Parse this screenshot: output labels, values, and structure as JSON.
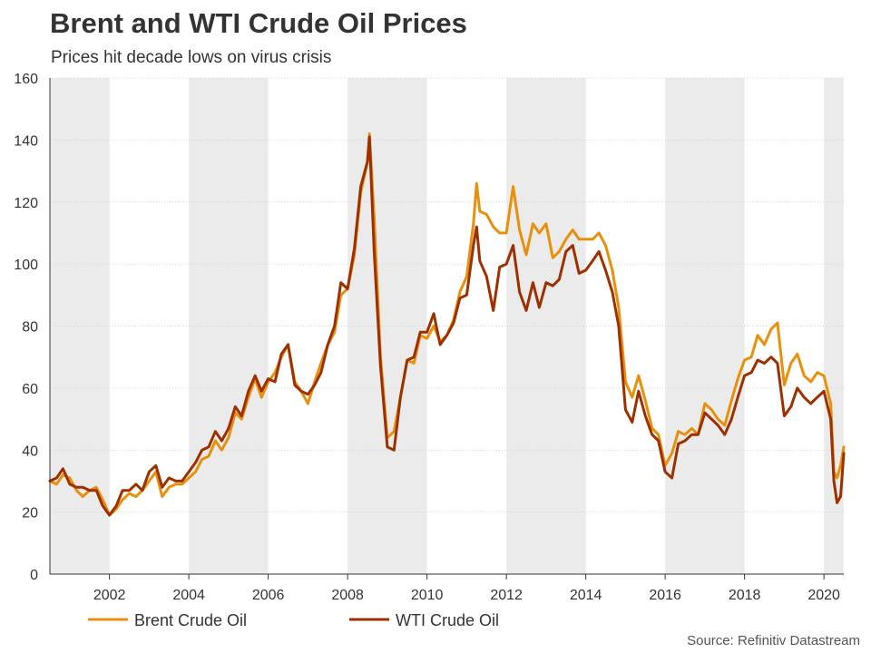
{
  "chart_data": {
    "type": "line",
    "title": "Brent and WTI Crude Oil Prices",
    "subtitle": "Prices hit decade lows on virus crisis",
    "source": "Source: Refinitiv Datastream",
    "ylim": [
      0,
      160
    ],
    "yticks": [
      0,
      20,
      40,
      60,
      80,
      100,
      120,
      140,
      160
    ],
    "xlim": [
      2000.5,
      2020.5
    ],
    "xticks": [
      2002,
      2004,
      2006,
      2008,
      2010,
      2012,
      2014,
      2016,
      2018,
      2020
    ],
    "shaded_periods": [
      [
        2000.5,
        2002
      ],
      [
        2004,
        2006
      ],
      [
        2008,
        2010
      ],
      [
        2012,
        2014
      ],
      [
        2016,
        2018
      ],
      [
        2020,
        2020.5
      ]
    ],
    "legend_position": "bottom-left",
    "series": [
      {
        "name": "Brent Crude Oil",
        "color": "#e8900c",
        "points": [
          [
            2000.5,
            30
          ],
          [
            2000.67,
            29
          ],
          [
            2000.83,
            32
          ],
          [
            2001.0,
            31
          ],
          [
            2001.17,
            27
          ],
          [
            2001.33,
            25
          ],
          [
            2001.5,
            27
          ],
          [
            2001.67,
            28
          ],
          [
            2001.83,
            24
          ],
          [
            2002.0,
            19
          ],
          [
            2002.17,
            21
          ],
          [
            2002.33,
            24
          ],
          [
            2002.5,
            26
          ],
          [
            2002.67,
            25
          ],
          [
            2002.83,
            27
          ],
          [
            2003.0,
            30
          ],
          [
            2003.17,
            33
          ],
          [
            2003.33,
            25
          ],
          [
            2003.5,
            28
          ],
          [
            2003.67,
            29
          ],
          [
            2003.83,
            29
          ],
          [
            2004.0,
            31
          ],
          [
            2004.17,
            33
          ],
          [
            2004.33,
            37
          ],
          [
            2004.5,
            38
          ],
          [
            2004.67,
            43
          ],
          [
            2004.83,
            40
          ],
          [
            2005.0,
            44
          ],
          [
            2005.17,
            52
          ],
          [
            2005.33,
            50
          ],
          [
            2005.5,
            57
          ],
          [
            2005.67,
            63
          ],
          [
            2005.83,
            57
          ],
          [
            2006.0,
            62
          ],
          [
            2006.17,
            65
          ],
          [
            2006.33,
            70
          ],
          [
            2006.5,
            74
          ],
          [
            2006.67,
            62
          ],
          [
            2006.83,
            59
          ],
          [
            2007.0,
            55
          ],
          [
            2007.17,
            62
          ],
          [
            2007.33,
            68
          ],
          [
            2007.5,
            74
          ],
          [
            2007.67,
            78
          ],
          [
            2007.83,
            90
          ],
          [
            2008.0,
            92
          ],
          [
            2008.17,
            103
          ],
          [
            2008.33,
            123
          ],
          [
            2008.5,
            133
          ],
          [
            2008.55,
            142
          ],
          [
            2008.67,
            115
          ],
          [
            2008.83,
            70
          ],
          [
            2009.0,
            44
          ],
          [
            2009.17,
            46
          ],
          [
            2009.33,
            57
          ],
          [
            2009.5,
            69
          ],
          [
            2009.67,
            68
          ],
          [
            2009.83,
            77
          ],
          [
            2010.0,
            76
          ],
          [
            2010.17,
            80
          ],
          [
            2010.33,
            75
          ],
          [
            2010.5,
            77
          ],
          [
            2010.67,
            82
          ],
          [
            2010.83,
            91
          ],
          [
            2011.0,
            96
          ],
          [
            2011.17,
            113
          ],
          [
            2011.25,
            126
          ],
          [
            2011.33,
            117
          ],
          [
            2011.5,
            116
          ],
          [
            2011.67,
            112
          ],
          [
            2011.83,
            110
          ],
          [
            2012.0,
            110
          ],
          [
            2012.17,
            125
          ],
          [
            2012.33,
            111
          ],
          [
            2012.5,
            103
          ],
          [
            2012.67,
            113
          ],
          [
            2012.83,
            110
          ],
          [
            2013.0,
            113
          ],
          [
            2013.17,
            102
          ],
          [
            2013.33,
            104
          ],
          [
            2013.5,
            108
          ],
          [
            2013.67,
            111
          ],
          [
            2013.83,
            108
          ],
          [
            2014.0,
            108
          ],
          [
            2014.17,
            108
          ],
          [
            2014.33,
            110
          ],
          [
            2014.5,
            106
          ],
          [
            2014.67,
            98
          ],
          [
            2014.83,
            86
          ],
          [
            2015.0,
            62
          ],
          [
            2015.17,
            57
          ],
          [
            2015.33,
            64
          ],
          [
            2015.5,
            56
          ],
          [
            2015.67,
            47
          ],
          [
            2015.83,
            45
          ],
          [
            2016.0,
            35
          ],
          [
            2016.17,
            39
          ],
          [
            2016.33,
            46
          ],
          [
            2016.5,
            45
          ],
          [
            2016.67,
            47
          ],
          [
            2016.83,
            45
          ],
          [
            2017.0,
            55
          ],
          [
            2017.17,
            53
          ],
          [
            2017.33,
            50
          ],
          [
            2017.5,
            48
          ],
          [
            2017.67,
            56
          ],
          [
            2017.83,
            63
          ],
          [
            2018.0,
            69
          ],
          [
            2018.17,
            70
          ],
          [
            2018.33,
            77
          ],
          [
            2018.5,
            74
          ],
          [
            2018.67,
            79
          ],
          [
            2018.83,
            81
          ],
          [
            2019.0,
            61
          ],
          [
            2019.17,
            68
          ],
          [
            2019.33,
            71
          ],
          [
            2019.5,
            64
          ],
          [
            2019.67,
            62
          ],
          [
            2019.83,
            65
          ],
          [
            2020.0,
            64
          ],
          [
            2020.17,
            55
          ],
          [
            2020.25,
            33
          ],
          [
            2020.33,
            31
          ],
          [
            2020.42,
            35
          ],
          [
            2020.5,
            41
          ]
        ]
      },
      {
        "name": "WTI Crude Oil",
        "color": "#9e3000",
        "points": [
          [
            2000.5,
            30
          ],
          [
            2000.67,
            31
          ],
          [
            2000.83,
            34
          ],
          [
            2001.0,
            29
          ],
          [
            2001.17,
            28
          ],
          [
            2001.33,
            28
          ],
          [
            2001.5,
            27
          ],
          [
            2001.67,
            27
          ],
          [
            2001.83,
            22
          ],
          [
            2002.0,
            19
          ],
          [
            2002.17,
            22
          ],
          [
            2002.33,
            27
          ],
          [
            2002.5,
            27
          ],
          [
            2002.67,
            29
          ],
          [
            2002.83,
            27
          ],
          [
            2003.0,
            33
          ],
          [
            2003.17,
            35
          ],
          [
            2003.33,
            28
          ],
          [
            2003.5,
            31
          ],
          [
            2003.67,
            30
          ],
          [
            2003.83,
            30
          ],
          [
            2004.0,
            33
          ],
          [
            2004.17,
            36
          ],
          [
            2004.33,
            40
          ],
          [
            2004.5,
            41
          ],
          [
            2004.67,
            46
          ],
          [
            2004.83,
            43
          ],
          [
            2005.0,
            47
          ],
          [
            2005.17,
            54
          ],
          [
            2005.33,
            51
          ],
          [
            2005.5,
            59
          ],
          [
            2005.67,
            64
          ],
          [
            2005.83,
            59
          ],
          [
            2006.0,
            63
          ],
          [
            2006.17,
            62
          ],
          [
            2006.33,
            71
          ],
          [
            2006.5,
            74
          ],
          [
            2006.67,
            61
          ],
          [
            2006.83,
            59
          ],
          [
            2007.0,
            58
          ],
          [
            2007.17,
            61
          ],
          [
            2007.33,
            65
          ],
          [
            2007.5,
            74
          ],
          [
            2007.67,
            80
          ],
          [
            2007.83,
            94
          ],
          [
            2008.0,
            92
          ],
          [
            2008.17,
            105
          ],
          [
            2008.33,
            125
          ],
          [
            2008.5,
            133
          ],
          [
            2008.55,
            141
          ],
          [
            2008.67,
            104
          ],
          [
            2008.83,
            67
          ],
          [
            2009.0,
            41
          ],
          [
            2009.17,
            40
          ],
          [
            2009.33,
            57
          ],
          [
            2009.5,
            69
          ],
          [
            2009.67,
            70
          ],
          [
            2009.83,
            78
          ],
          [
            2010.0,
            78
          ],
          [
            2010.17,
            84
          ],
          [
            2010.33,
            74
          ],
          [
            2010.5,
            77
          ],
          [
            2010.67,
            81
          ],
          [
            2010.83,
            89
          ],
          [
            2011.0,
            90
          ],
          [
            2011.17,
            106
          ],
          [
            2011.25,
            112
          ],
          [
            2011.33,
            101
          ],
          [
            2011.5,
            96
          ],
          [
            2011.67,
            85
          ],
          [
            2011.83,
            99
          ],
          [
            2012.0,
            100
          ],
          [
            2012.17,
            106
          ],
          [
            2012.33,
            91
          ],
          [
            2012.5,
            85
          ],
          [
            2012.67,
            94
          ],
          [
            2012.83,
            86
          ],
          [
            2013.0,
            94
          ],
          [
            2013.17,
            93
          ],
          [
            2013.33,
            95
          ],
          [
            2013.5,
            104
          ],
          [
            2013.67,
            106
          ],
          [
            2013.83,
            97
          ],
          [
            2014.0,
            98
          ],
          [
            2014.17,
            101
          ],
          [
            2014.33,
            104
          ],
          [
            2014.5,
            98
          ],
          [
            2014.67,
            91
          ],
          [
            2014.83,
            80
          ],
          [
            2015.0,
            53
          ],
          [
            2015.17,
            49
          ],
          [
            2015.33,
            59
          ],
          [
            2015.5,
            51
          ],
          [
            2015.67,
            45
          ],
          [
            2015.83,
            43
          ],
          [
            2016.0,
            33
          ],
          [
            2016.17,
            31
          ],
          [
            2016.33,
            42
          ],
          [
            2016.5,
            43
          ],
          [
            2016.67,
            45
          ],
          [
            2016.83,
            45
          ],
          [
            2017.0,
            52
          ],
          [
            2017.17,
            50
          ],
          [
            2017.33,
            48
          ],
          [
            2017.5,
            45
          ],
          [
            2017.67,
            50
          ],
          [
            2017.83,
            57
          ],
          [
            2018.0,
            64
          ],
          [
            2018.17,
            65
          ],
          [
            2018.33,
            69
          ],
          [
            2018.5,
            68
          ],
          [
            2018.67,
            70
          ],
          [
            2018.83,
            68
          ],
          [
            2019.0,
            51
          ],
          [
            2019.17,
            54
          ],
          [
            2019.33,
            60
          ],
          [
            2019.5,
            57
          ],
          [
            2019.67,
            55
          ],
          [
            2019.83,
            57
          ],
          [
            2020.0,
            59
          ],
          [
            2020.17,
            50
          ],
          [
            2020.25,
            30
          ],
          [
            2020.33,
            23
          ],
          [
            2020.42,
            25
          ],
          [
            2020.5,
            39
          ]
        ]
      }
    ]
  }
}
